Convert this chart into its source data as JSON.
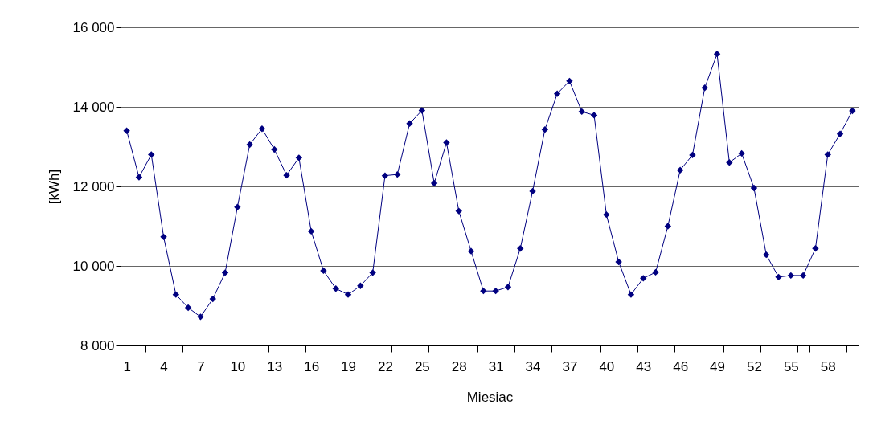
{
  "chart_data": {
    "type": "line",
    "xlabel": "Miesiac",
    "ylabel": "[kWh]",
    "categories": [
      "1",
      null,
      null,
      "4",
      null,
      null,
      "7",
      null,
      null,
      "10",
      null,
      null,
      "13",
      null,
      null,
      "16",
      null,
      null,
      "19",
      null,
      null,
      "22",
      null,
      null,
      "25",
      null,
      null,
      "28",
      null,
      null,
      "31",
      null,
      null,
      "34",
      null,
      null,
      "37",
      null,
      null,
      "40",
      null,
      null,
      "43",
      null,
      null,
      "46",
      null,
      null,
      "49",
      null,
      null,
      "52",
      null,
      null,
      "55",
      null,
      null,
      "58",
      null,
      null
    ],
    "series": [
      {
        "color": "#000080",
        "values": [
          13400,
          12230,
          12800,
          10730,
          9280,
          8950,
          8720,
          9170,
          9830,
          11480,
          13050,
          13450,
          12930,
          12280,
          12720,
          10870,
          9880,
          9430,
          9280,
          9500,
          9830,
          12270,
          12300,
          13580,
          13910,
          12080,
          13100,
          11380,
          10370,
          9370,
          9370,
          9470,
          10440,
          11880,
          13430,
          14330,
          14650,
          13880,
          13790,
          11290,
          10100,
          9280,
          9690,
          9840,
          11000,
          12410,
          12790,
          14480,
          15330,
          12600,
          12830,
          11960,
          10280,
          9720,
          9760,
          9760,
          10440,
          12800,
          13320,
          13900
        ]
      }
    ],
    "ylim": [
      8000,
      16000
    ],
    "yticks": [
      {
        "value": 8000,
        "label": "8 000"
      },
      {
        "value": 10000,
        "label": "10 000"
      },
      {
        "value": 12000,
        "label": "12 000"
      },
      {
        "value": 14000,
        "label": "14 000"
      },
      {
        "value": 16000,
        "label": "16 000"
      }
    ],
    "grid": "y",
    "marker": "diamond",
    "line_style": "solid"
  }
}
